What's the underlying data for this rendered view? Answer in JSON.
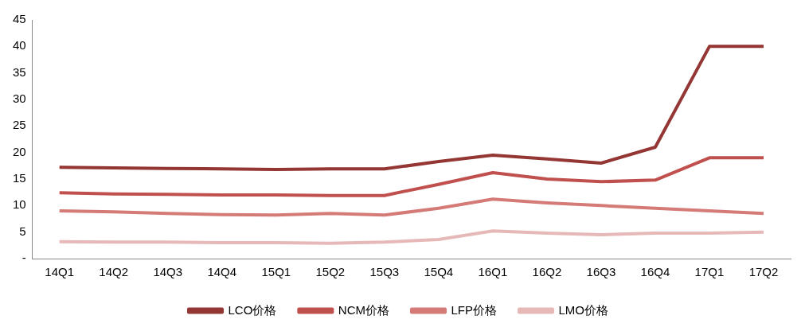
{
  "chart_data": {
    "type": "line",
    "categories": [
      "14Q1",
      "14Q2",
      "14Q3",
      "14Q4",
      "15Q1",
      "15Q2",
      "15Q3",
      "15Q4",
      "16Q1",
      "16Q2",
      "16Q3",
      "16Q4",
      "17Q1",
      "17Q2"
    ],
    "series": [
      {
        "name": "LCO价格",
        "color": "#943634",
        "values": [
          17.2,
          17.1,
          17.0,
          16.9,
          16.8,
          16.9,
          16.9,
          18.3,
          19.5,
          18.8,
          18.0,
          21.0,
          40,
          40
        ]
      },
      {
        "name": "NCM价格",
        "color": "#c0504d",
        "values": [
          12.4,
          12.2,
          12.1,
          12.0,
          12.0,
          11.9,
          11.9,
          14.0,
          16.2,
          15.0,
          14.5,
          14.8,
          19,
          19
        ]
      },
      {
        "name": "LFP价格",
        "color": "#d47b78",
        "values": [
          9.0,
          8.8,
          8.5,
          8.3,
          8.2,
          8.5,
          8.2,
          9.5,
          11.2,
          10.5,
          10.0,
          9.5,
          9.0,
          8.5
        ]
      },
      {
        "name": "LMO价格",
        "color": "#e6b9b8",
        "values": [
          3.2,
          3.1,
          3.1,
          3.0,
          3.0,
          2.9,
          3.1,
          3.6,
          5.2,
          4.8,
          4.5,
          4.8,
          4.8,
          5.0
        ]
      }
    ],
    "ylim": [
      0,
      45
    ],
    "yticks": [
      {
        "value": 0,
        "label": "-"
      },
      5,
      10,
      15,
      20,
      25,
      30,
      35,
      40,
      45
    ],
    "grid": false,
    "legend": "bottom",
    "marker": "none",
    "line_style": "solid"
  }
}
